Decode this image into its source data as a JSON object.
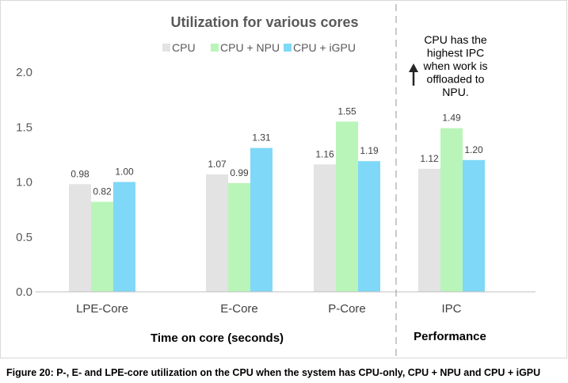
{
  "caption": "Figure 20: P-, E- and LPE-core utilization on the CPU when the system has CPU-only, CPU + NPU and CPU + iGPU",
  "chart_data": {
    "type": "bar",
    "title": "Utilization for various cores",
    "categories": [
      "LPE-Core",
      "E-Core",
      "P-Core",
      "IPC"
    ],
    "series": [
      {
        "name": "CPU",
        "color": "#e3e3e3",
        "values": [
          0.98,
          1.07,
          1.16,
          1.12
        ],
        "labels": [
          "0.98",
          "1.07",
          "1.16",
          "1.12"
        ]
      },
      {
        "name": "CPU + NPU",
        "color": "#b9f5b9",
        "values": [
          0.82,
          0.99,
          1.55,
          1.49
        ],
        "labels": [
          "0.82",
          "0.99",
          "1.55",
          "1.49"
        ]
      },
      {
        "name": "CPU + iGPU",
        "color": "#7fd8f7",
        "values": [
          1.0,
          1.31,
          1.19,
          1.2
        ],
        "labels": [
          "1.00",
          "1.31",
          "1.19",
          "1.20"
        ]
      }
    ],
    "ylim": [
      0,
      2.0
    ],
    "yticks": [
      "0.0",
      "0.5",
      "1.0",
      "1.5",
      "2.0"
    ],
    "group_labels": [
      "Time on core (seconds)",
      "Performance"
    ],
    "annotation": [
      "CPU has the",
      "highest IPC",
      "when work is",
      "offloaded to",
      "NPU."
    ],
    "legend_position": "top"
  }
}
